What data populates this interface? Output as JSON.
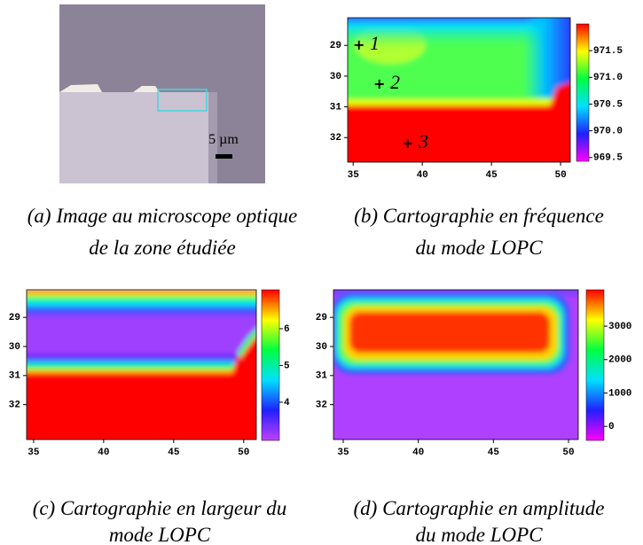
{
  "image": {
    "caption": [
      "(a) Image au microscope optique",
      "de la zone étudiée"
    ],
    "scale_bar": "5 µm"
  },
  "frequency_map": {
    "caption": [
      "(b) Cartographie en fréquence",
      "du mode LOPC"
    ],
    "xlim": [
      34.6,
      50.7
    ],
    "ylim": [
      28.1,
      32.8
    ],
    "xticks": [
      35,
      40,
      45,
      50
    ],
    "yticks": [
      29,
      30,
      31,
      32
    ],
    "colorbar_lim": [
      969.43,
      972.0
    ],
    "colorbar_ticks": [
      971.5,
      {
        "value": 971,
        "label": "971.0"
      },
      970.5,
      {
        "value": 970,
        "label": "970.0"
      },
      969.5
    ],
    "points": [
      "1",
      "2",
      "3"
    ]
  },
  "width_map": {
    "caption": [
      "(c) Cartographie en largeur du",
      "mode LOPC"
    ],
    "xlim": [
      34.5,
      50.9
    ],
    "ylim": [
      28.05,
      33.2
    ],
    "xticks": [
      35,
      40,
      45,
      50
    ],
    "yticks": [
      29,
      30,
      31,
      32
    ],
    "colorbar_lim": [
      2.96,
      7.06
    ],
    "colorbar_ticks": [
      4,
      5,
      6
    ]
  },
  "amplitude_map": {
    "caption": [
      "(d) Cartographie en amplitude",
      "du mode LOPC"
    ],
    "xlim": [
      34.35,
      50.65
    ],
    "ylim": [
      28.05,
      33.2
    ],
    "xticks": [
      35,
      40,
      45,
      50
    ],
    "yticks": [
      29,
      30,
      31,
      32
    ],
    "colorbar_lim": [
      -420,
      4090
    ],
    "colorbar_ticks": [
      0,
      1000,
      2000,
      3000
    ]
  }
}
